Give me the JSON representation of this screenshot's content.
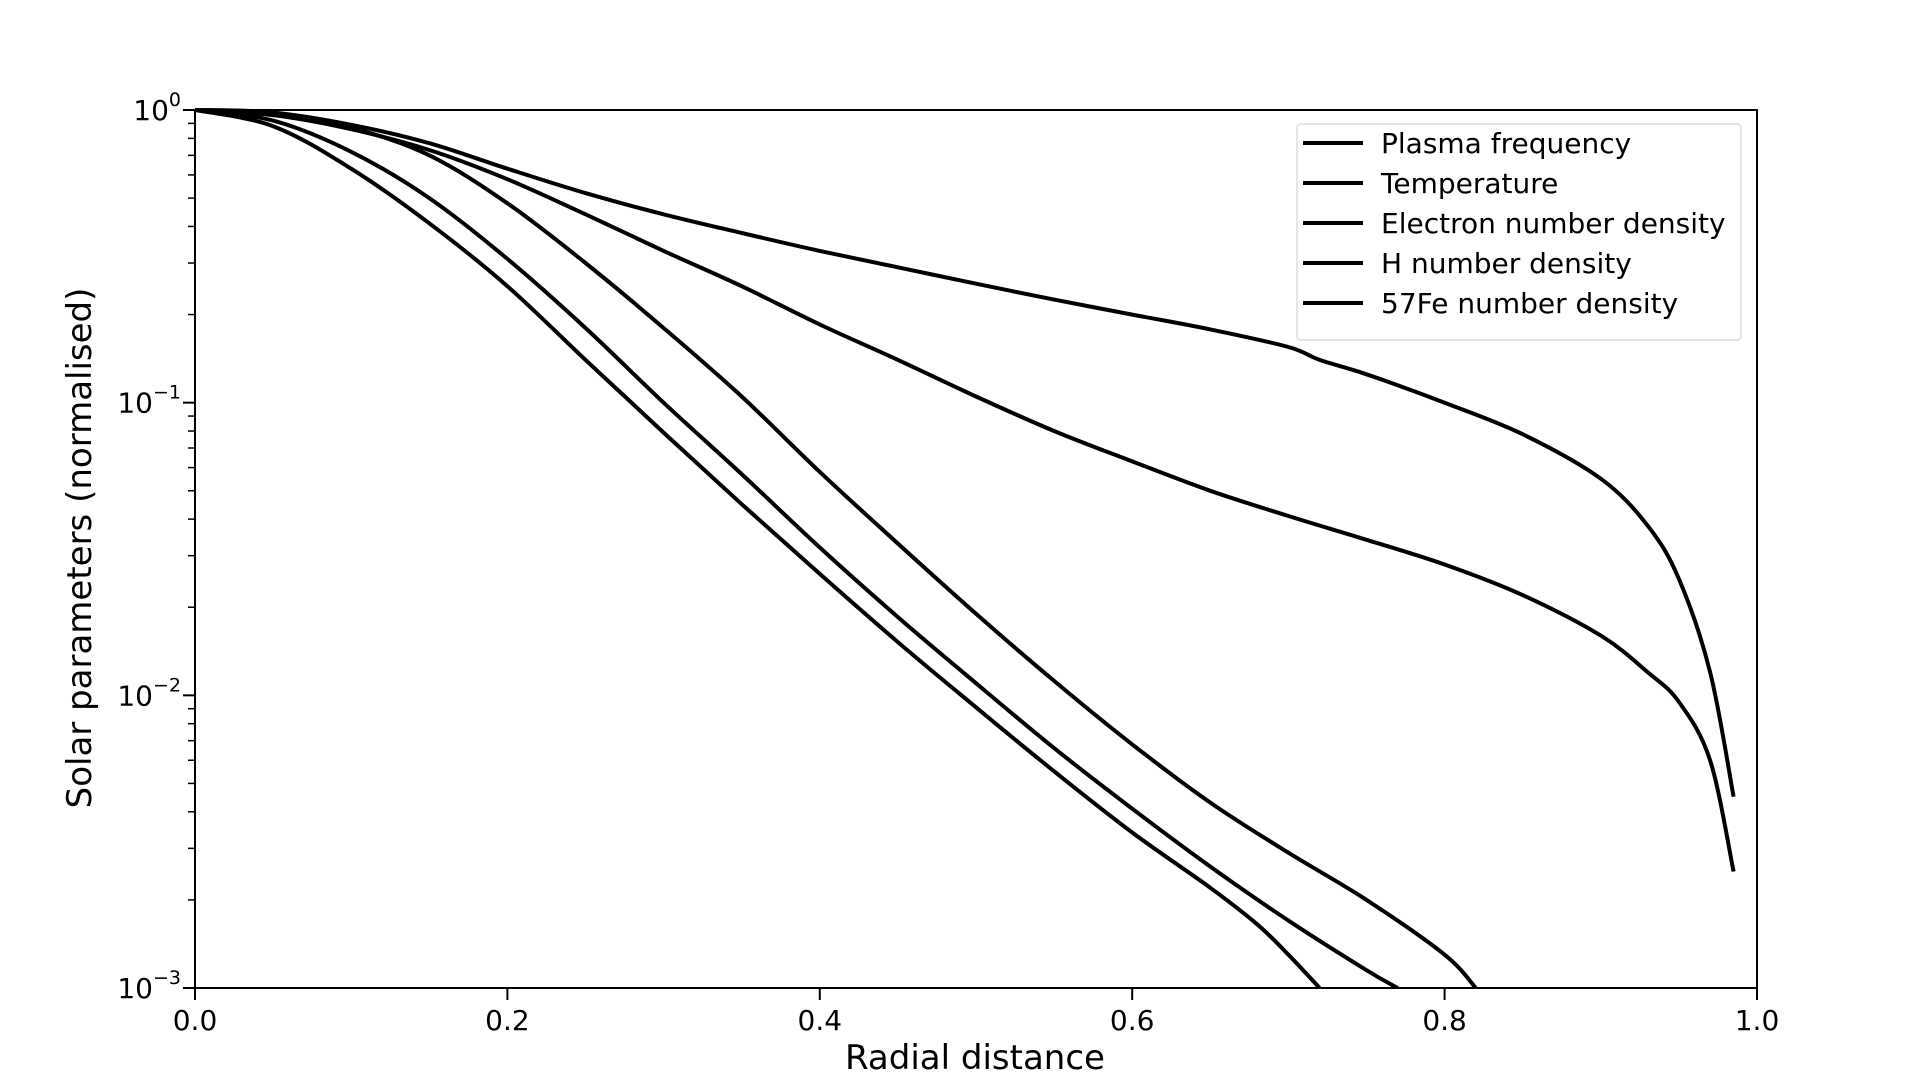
{
  "chart_data": {
    "type": "line",
    "title": "",
    "xlabel": "Radial distance",
    "ylabel": "Solar parameters (normalised)",
    "xlim": [
      0.0,
      1.0
    ],
    "ylim": [
      0.001,
      1
    ],
    "yscale": "log",
    "grid": false,
    "legend_position": "top-right",
    "line_color": "#000000",
    "x_ticks": [
      {
        "value": 0.0,
        "label": "0.0"
      },
      {
        "value": 0.2,
        "label": "0.2"
      },
      {
        "value": 0.4,
        "label": "0.4"
      },
      {
        "value": 0.6,
        "label": "0.6"
      },
      {
        "value": 0.8,
        "label": "0.8"
      },
      {
        "value": 1.0,
        "label": "1.0"
      }
    ],
    "y_ticks": [
      {
        "value": 1,
        "base": "10",
        "exp": "0"
      },
      {
        "value": 0.1,
        "base": "10",
        "exp": "−1"
      },
      {
        "value": 0.01,
        "base": "10",
        "exp": "−2"
      },
      {
        "value": 0.001,
        "base": "10",
        "exp": "−3"
      }
    ],
    "series": [
      {
        "name": "Plasma frequency",
        "points": [
          [
            0.0,
            1.0
          ],
          [
            0.05,
            0.98
          ],
          [
            0.1,
            0.89
          ],
          [
            0.15,
            0.77
          ],
          [
            0.2,
            0.63
          ],
          [
            0.25,
            0.52
          ],
          [
            0.3,
            0.44
          ],
          [
            0.35,
            0.38
          ],
          [
            0.4,
            0.33
          ],
          [
            0.45,
            0.29
          ],
          [
            0.5,
            0.255
          ],
          [
            0.55,
            0.225
          ],
          [
            0.6,
            0.2
          ],
          [
            0.65,
            0.178
          ],
          [
            0.7,
            0.155
          ],
          [
            0.72,
            0.14
          ],
          [
            0.75,
            0.125
          ],
          [
            0.8,
            0.1
          ],
          [
            0.85,
            0.078
          ],
          [
            0.9,
            0.055
          ],
          [
            0.93,
            0.038
          ],
          [
            0.95,
            0.025
          ],
          [
            0.97,
            0.012
          ],
          [
            0.985,
            0.0045
          ]
        ]
      },
      {
        "name": "Temperature",
        "points": [
          [
            0.0,
            1.0
          ],
          [
            0.05,
            0.96
          ],
          [
            0.1,
            0.86
          ],
          [
            0.15,
            0.73
          ],
          [
            0.2,
            0.58
          ],
          [
            0.25,
            0.44
          ],
          [
            0.3,
            0.33
          ],
          [
            0.35,
            0.25
          ],
          [
            0.4,
            0.185
          ],
          [
            0.45,
            0.14
          ],
          [
            0.5,
            0.105
          ],
          [
            0.55,
            0.08
          ],
          [
            0.6,
            0.063
          ],
          [
            0.65,
            0.05
          ],
          [
            0.7,
            0.041
          ],
          [
            0.75,
            0.034
          ],
          [
            0.8,
            0.028
          ],
          [
            0.85,
            0.022
          ],
          [
            0.9,
            0.016
          ],
          [
            0.93,
            0.012
          ],
          [
            0.95,
            0.0095
          ],
          [
            0.97,
            0.006
          ],
          [
            0.985,
            0.0025
          ]
        ]
      },
      {
        "name": "Electron number density",
        "points": [
          [
            0.0,
            1.0
          ],
          [
            0.05,
            0.98
          ],
          [
            0.1,
            0.87
          ],
          [
            0.15,
            0.7
          ],
          [
            0.2,
            0.48
          ],
          [
            0.25,
            0.3
          ],
          [
            0.3,
            0.18
          ],
          [
            0.35,
            0.105
          ],
          [
            0.4,
            0.058
          ],
          [
            0.45,
            0.033
          ],
          [
            0.5,
            0.019
          ],
          [
            0.55,
            0.0112
          ],
          [
            0.6,
            0.0068
          ],
          [
            0.65,
            0.0043
          ],
          [
            0.7,
            0.0029
          ],
          [
            0.75,
            0.002
          ],
          [
            0.8,
            0.0013
          ],
          [
            0.82,
            0.001
          ]
        ]
      },
      {
        "name": "H number density",
        "points": [
          [
            0.0,
            1.0
          ],
          [
            0.05,
            0.92
          ],
          [
            0.1,
            0.72
          ],
          [
            0.15,
            0.5
          ],
          [
            0.2,
            0.31
          ],
          [
            0.25,
            0.18
          ],
          [
            0.3,
            0.1
          ],
          [
            0.35,
            0.057
          ],
          [
            0.4,
            0.032
          ],
          [
            0.45,
            0.0185
          ],
          [
            0.5,
            0.011
          ],
          [
            0.55,
            0.0066
          ],
          [
            0.6,
            0.0041
          ],
          [
            0.65,
            0.0026
          ],
          [
            0.7,
            0.0017
          ],
          [
            0.75,
            0.00115
          ],
          [
            0.77,
            0.001
          ]
        ]
      },
      {
        "name": "57Fe number density",
        "points": [
          [
            0.0,
            1.0
          ],
          [
            0.05,
            0.88
          ],
          [
            0.1,
            0.63
          ],
          [
            0.15,
            0.41
          ],
          [
            0.2,
            0.25
          ],
          [
            0.25,
            0.14
          ],
          [
            0.3,
            0.079
          ],
          [
            0.35,
            0.045
          ],
          [
            0.4,
            0.026
          ],
          [
            0.45,
            0.0152
          ],
          [
            0.5,
            0.0091
          ],
          [
            0.55,
            0.0055
          ],
          [
            0.6,
            0.0034
          ],
          [
            0.65,
            0.0022
          ],
          [
            0.68,
            0.00165
          ],
          [
            0.7,
            0.0013
          ],
          [
            0.72,
            0.001
          ]
        ]
      }
    ]
  }
}
